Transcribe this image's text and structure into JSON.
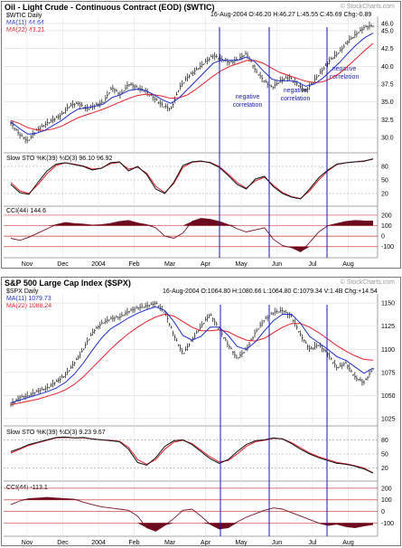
{
  "chart_data": [
    {
      "type": "line",
      "title": "Oil - Light Crude - Continuous Contract (EOD) ($WTIC)",
      "symbol_label": "$WTIC Daily",
      "watermark": "© StockCharts.com",
      "ohlc_summary": "16-Aug-2004 O:46.20 H:46.27 L:45.55 C:45.69 Chg:-0.89",
      "legend": [
        {
          "name": "MA(11) 44.64",
          "color": "#1f2ec8"
        },
        {
          "name": "MA(22) 43.21",
          "color": "#e0202a"
        }
      ],
      "ylim": [
        28,
        47
      ],
      "yticks": [
        "46.0",
        "45.0",
        "42.5",
        "40.0",
        "37.5",
        "35.0",
        "32.5",
        "30.0"
      ],
      "months": [
        "Nov",
        "Dec",
        "2004",
        "Feb",
        "Mar",
        "Apr",
        "May",
        "Jun",
        "Jul",
        "Aug"
      ],
      "annotations": [
        "negative correlation",
        "negative correlation",
        "negative correlation"
      ],
      "price_path": [
        32.0,
        30.5,
        29.5,
        31.0,
        31.8,
        32.5,
        33.2,
        34.5,
        34.8,
        34.0,
        34.5,
        35.0,
        37.0,
        36.0,
        37.5,
        37.0,
        36.5,
        35.5,
        34.5,
        34.0,
        37.0,
        38.5,
        39.5,
        40.5,
        41.5,
        41.0,
        40.5,
        41.0,
        41.8,
        39.5,
        38.0,
        37.0,
        38.0,
        38.5,
        37.5,
        36.5,
        38.0,
        39.5,
        41.0,
        42.0,
        43.5,
        44.5,
        45.5,
        45.69
      ],
      "ma11_path": [
        32.2,
        31.3,
        30.5,
        30.6,
        31.0,
        31.7,
        32.4,
        33.3,
        34.0,
        34.2,
        34.4,
        34.7,
        35.6,
        36.0,
        36.6,
        36.8,
        36.6,
        36.0,
        35.3,
        34.8,
        35.6,
        36.8,
        38.0,
        39.2,
        40.4,
        40.9,
        40.8,
        40.9,
        41.3,
        40.6,
        39.3,
        38.2,
        37.9,
        38.0,
        37.8,
        37.2,
        37.5,
        38.3,
        39.4,
        40.5,
        41.8,
        43.0,
        44.0,
        44.64
      ],
      "ma22_path": [
        32.4,
        32.0,
        31.4,
        31.1,
        31.0,
        31.2,
        31.6,
        32.2,
        32.8,
        33.2,
        33.6,
        34.0,
        34.5,
        35.0,
        35.5,
        35.9,
        36.1,
        36.0,
        35.8,
        35.5,
        35.6,
        36.0,
        36.8,
        37.7,
        38.6,
        39.4,
        40.0,
        40.4,
        40.8,
        40.8,
        40.4,
        39.7,
        39.1,
        38.7,
        38.3,
        37.9,
        37.7,
        37.8,
        38.3,
        39.0,
        40.0,
        41.1,
        42.2,
        43.21
      ],
      "sto_title": "Slow STO %K(39) %D(3) 96.10 96.92",
      "sto_levels": [
        "80",
        "50",
        "20"
      ],
      "sto_k": [
        40,
        22,
        18,
        45,
        70,
        85,
        88,
        84,
        80,
        72,
        76,
        88,
        90,
        70,
        80,
        62,
        30,
        20,
        45,
        82,
        90,
        92,
        88,
        78,
        60,
        40,
        30,
        52,
        58,
        35,
        20,
        12,
        8,
        30,
        55,
        72,
        85,
        88,
        90,
        92,
        96.1
      ],
      "sto_d": [
        44,
        26,
        20,
        40,
        64,
        82,
        88,
        85,
        81,
        74,
        76,
        86,
        89,
        74,
        78,
        65,
        36,
        22,
        42,
        78,
        89,
        91,
        89,
        80,
        63,
        44,
        32,
        48,
        56,
        38,
        22,
        13,
        9,
        26,
        50,
        70,
        84,
        88,
        90,
        91,
        96.92
      ],
      "cci_title": "CCI(44) 144.6",
      "cci_levels": [
        "200",
        "100",
        "0",
        "-100"
      ],
      "cci_values": [
        -20,
        -40,
        -10,
        30,
        70,
        110,
        130,
        120,
        115,
        105,
        110,
        120,
        140,
        150,
        125,
        110,
        80,
        0,
        -20,
        30,
        140,
        170,
        160,
        140,
        110,
        70,
        40,
        60,
        80,
        -30,
        -90,
        -110,
        -150,
        -60,
        40,
        100,
        120,
        140,
        150,
        145,
        144.6
      ]
    },
    {
      "type": "line",
      "title": "S&P 500 Large Cap Index ($SPX)",
      "symbol_label": "$SPX Daily",
      "watermark": "© StockCharts.com",
      "ohlc_summary": "16-Aug-2004 O:1064.80 H:1080.66 L:1064.80 C:1079.34 V:1.4B Chg:+14.54",
      "legend": [
        {
          "name": "MA(11) 1079.73",
          "color": "#1f2ec8"
        },
        {
          "name": "MA(22) 1088.24",
          "color": "#e0202a"
        }
      ],
      "ylim": [
        1018,
        1160
      ],
      "yticks": [
        "1150",
        "1125",
        "1100",
        "1075",
        "1050",
        "1025"
      ],
      "months": [
        "Nov",
        "Dec",
        "2004",
        "Feb",
        "Mar",
        "Apr",
        "May",
        "Jun",
        "Jul",
        "Aug"
      ],
      "price_path": [
        1040,
        1048,
        1050,
        1055,
        1058,
        1065,
        1072,
        1085,
        1100,
        1118,
        1128,
        1133,
        1135,
        1141,
        1145,
        1147,
        1150,
        1140,
        1115,
        1095,
        1110,
        1125,
        1138,
        1122,
        1105,
        1090,
        1100,
        1118,
        1132,
        1140,
        1142,
        1135,
        1115,
        1100,
        1105,
        1095,
        1080,
        1085,
        1070,
        1064,
        1079.34
      ],
      "ma11_path": [
        1042,
        1045,
        1048,
        1051,
        1054,
        1058,
        1064,
        1073,
        1085,
        1099,
        1112,
        1122,
        1128,
        1134,
        1139,
        1143,
        1146,
        1142,
        1130,
        1115,
        1110,
        1114,
        1124,
        1124,
        1115,
        1103,
        1100,
        1108,
        1120,
        1131,
        1138,
        1138,
        1128,
        1114,
        1107,
        1100,
        1092,
        1088,
        1081,
        1074,
        1079.73
      ],
      "ma22_path": [
        1040,
        1042,
        1044,
        1046,
        1049,
        1052,
        1056,
        1062,
        1070,
        1080,
        1090,
        1100,
        1109,
        1117,
        1124,
        1130,
        1135,
        1138,
        1136,
        1130,
        1124,
        1120,
        1120,
        1121,
        1119,
        1114,
        1110,
        1109,
        1112,
        1118,
        1124,
        1128,
        1128,
        1124,
        1118,
        1111,
        1104,
        1098,
        1093,
        1089,
        1088.24
      ],
      "sto_title": "Slow STO %K(39) %D(3) 9.23 9.67",
      "sto_levels": [
        "80",
        "50",
        "20"
      ],
      "sto_k": [
        55,
        62,
        70,
        75,
        80,
        85,
        86,
        84,
        85,
        82,
        80,
        78,
        76,
        60,
        32,
        26,
        42,
        66,
        78,
        80,
        70,
        55,
        40,
        30,
        38,
        55,
        70,
        78,
        80,
        84,
        82,
        72,
        60,
        50,
        42,
        36,
        30,
        28,
        24,
        18,
        9.23
      ],
      "sto_d": [
        52,
        60,
        68,
        74,
        79,
        84,
        85,
        84,
        84,
        82,
        80,
        79,
        77,
        64,
        38,
        28,
        38,
        60,
        75,
        79,
        72,
        58,
        44,
        33,
        36,
        50,
        66,
        76,
        79,
        83,
        82,
        74,
        63,
        52,
        44,
        38,
        32,
        29,
        25,
        20,
        9.67
      ],
      "cci_title": "CCI(44) -113.1",
      "cci_levels": [
        "200",
        "100",
        "0",
        "-100"
      ],
      "cci_values": [
        60,
        90,
        110,
        115,
        120,
        115,
        110,
        105,
        80,
        60,
        40,
        30,
        20,
        10,
        -40,
        -140,
        -170,
        -120,
        -60,
        10,
        20,
        -40,
        -110,
        -150,
        -140,
        -90,
        -50,
        -20,
        10,
        30,
        20,
        -10,
        -40,
        -70,
        -100,
        -120,
        -110,
        -130,
        -140,
        -125,
        -113.1
      ]
    }
  ]
}
